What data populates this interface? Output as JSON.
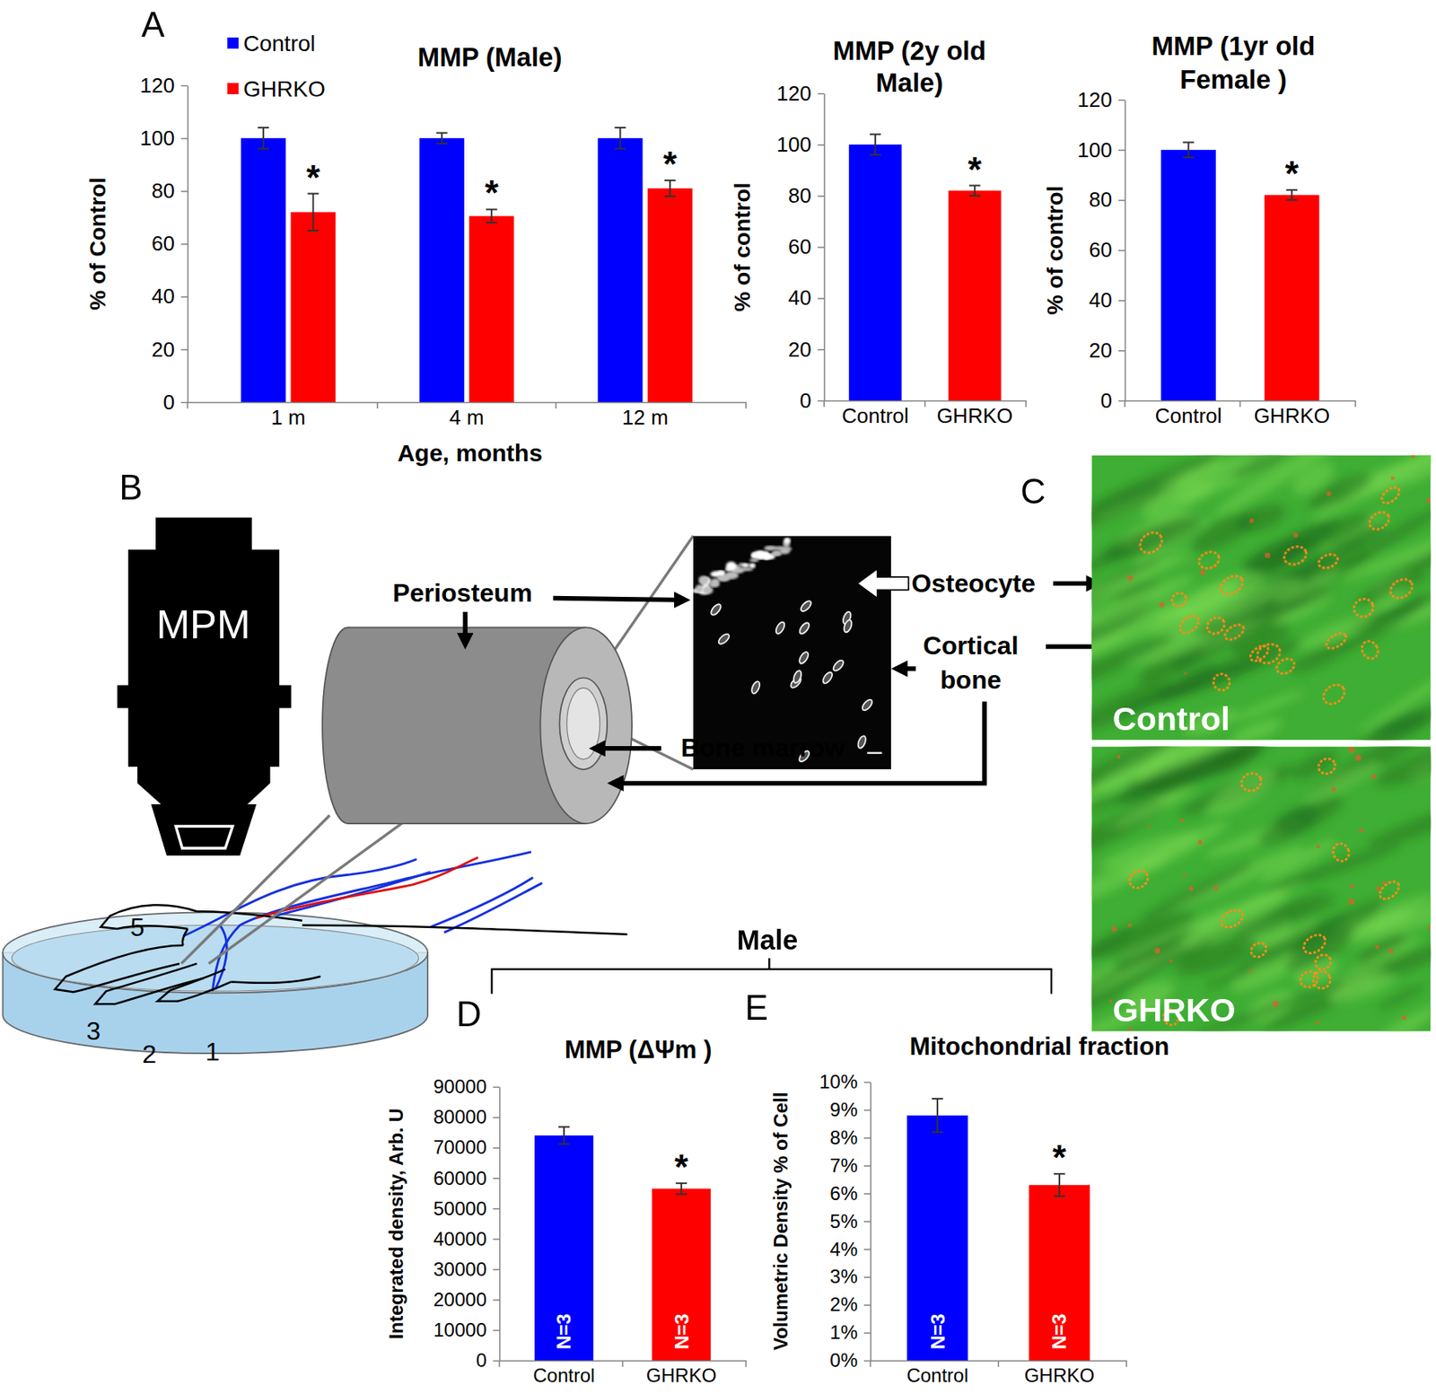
{
  "chart_data": [
    {
      "type": "bar",
      "title": [
        "MMP (Male)"
      ],
      "x_label": "Age, months",
      "y_label": "% of Control",
      "categories": [
        "1 m",
        "4 m",
        "12 m"
      ],
      "series": [
        {
          "name": "Control",
          "color": "#0000ff",
          "values": [
            100,
            100,
            100
          ],
          "errors": [
            4,
            2,
            4
          ]
        },
        {
          "name": "GHRKO",
          "color": "#ff0000",
          "values": [
            72,
            70.5,
            81
          ],
          "errors": [
            7,
            2.5,
            3
          ],
          "annotations": [
            "*",
            "*",
            "*"
          ]
        }
      ],
      "ylim": [
        0,
        120
      ],
      "yticks": [
        0,
        20,
        40,
        60,
        80,
        100,
        120
      ],
      "legend": "top-left"
    },
    {
      "type": "bar",
      "title": [
        "MMP (2y old",
        "Male)"
      ],
      "y_label": "% of control",
      "categories": [
        "Control",
        "GHRKO"
      ],
      "values": [
        100,
        82
      ],
      "errors": [
        4,
        2
      ],
      "colors": [
        "#0000ff",
        "#ff0000"
      ],
      "annotations": [
        null,
        "*"
      ],
      "ylim": [
        0,
        120
      ],
      "yticks": [
        0,
        20,
        40,
        60,
        80,
        100,
        120
      ]
    },
    {
      "type": "bar",
      "title": [
        "MMP (1yr old",
        "Female )"
      ],
      "y_label": "% of control",
      "categories": [
        "Control",
        "GHRKO"
      ],
      "values": [
        100,
        82
      ],
      "errors": [
        3,
        2
      ],
      "colors": [
        "#0000ff",
        "#ff0000"
      ],
      "annotations": [
        null,
        "*"
      ],
      "ylim": [
        0,
        120
      ],
      "yticks": [
        0,
        20,
        40,
        60,
        80,
        100,
        120
      ]
    },
    {
      "type": "bar",
      "title": [
        "MMP (ΔΨm )"
      ],
      "y_label": "Integrated density, Arb. U",
      "categories": [
        "Control",
        "GHRKO"
      ],
      "values": [
        74000,
        56500
      ],
      "errors": [
        2800,
        1800
      ],
      "colors": [
        "#0000ff",
        "#ff0000"
      ],
      "annotations": [
        null,
        "*"
      ],
      "inner_labels": [
        "N=3",
        "N=3"
      ],
      "ylim": [
        0,
        90000
      ],
      "yticks": [
        0,
        10000,
        20000,
        30000,
        40000,
        50000,
        60000,
        70000,
        80000,
        90000
      ]
    },
    {
      "type": "bar",
      "title": [
        "Mitochondrial fraction"
      ],
      "y_label": "Volumetric Density % of Cell",
      "categories": [
        "Control",
        "GHRKO"
      ],
      "values": [
        8.8,
        6.3
      ],
      "errors": [
        0.6,
        0.4
      ],
      "colors": [
        "#0000ff",
        "#ff0000"
      ],
      "annotations": [
        null,
        "*"
      ],
      "inner_labels": [
        "N=3",
        "N=3"
      ],
      "ylim": [
        0,
        10
      ],
      "yticks": [
        {
          "value": 0,
          "label": "0%"
        },
        {
          "value": 1,
          "label": "1%"
        },
        {
          "value": 2,
          "label": "2%"
        },
        {
          "value": 3,
          "label": "3%"
        },
        {
          "value": 4,
          "label": "4%"
        },
        {
          "value": 5,
          "label": "5%"
        },
        {
          "value": 6,
          "label": "6%"
        },
        {
          "value": 7,
          "label": "7%"
        },
        {
          "value": 8,
          "label": "8%"
        },
        {
          "value": 9,
          "label": "9%"
        },
        {
          "value": 10,
          "label": "10%"
        }
      ]
    }
  ],
  "panel_labels": [
    "A",
    "B",
    "C",
    "D",
    "E"
  ],
  "bracket": "Male",
  "diagram": {
    "microscope": "MPM",
    "periosteum": "Periosteum",
    "osteocyte": "Osteocyte",
    "cortical_bone": [
      "Cortical",
      "bone"
    ],
    "bone_marrow": "Bone marrow",
    "digits": [
      "5",
      "3",
      "2",
      "1"
    ],
    "images": [
      "Control",
      "GHRKO"
    ]
  }
}
